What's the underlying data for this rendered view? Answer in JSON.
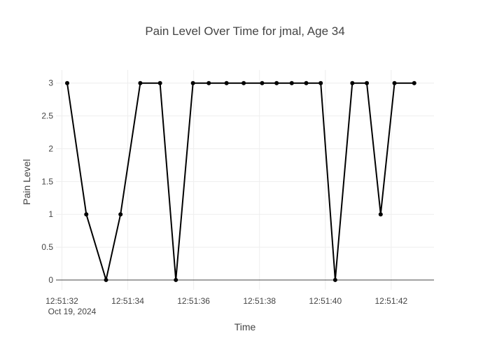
{
  "chart_data": {
    "type": "line",
    "title": "Pain Level Over Time for jmal, Age 34",
    "xlabel": "Time",
    "ylabel": "Pain Level",
    "date": "Oct 19, 2024",
    "x_tick_labels": [
      "12:51:32",
      "12:51:34",
      "12:51:36",
      "12:51:38",
      "12:51:40",
      "12:51:42"
    ],
    "y_tick_labels": [
      "0",
      "0.5",
      "1",
      "1.5",
      "2",
      "2.5",
      "3"
    ],
    "xlim": [
      "12:51:31.820",
      "12:51:43.300"
    ],
    "ylim": [
      -0.15,
      3.2
    ],
    "grid": true,
    "legend": false,
    "line_color": "#000000",
    "series": [
      {
        "x": [
          "12:51:32.160",
          "12:51:32.740",
          "12:51:33.340",
          "12:51:33.780",
          "12:51:34.380",
          "12:51:34.980",
          "12:51:35.460",
          "12:51:35.980",
          "12:51:36.460",
          "12:51:37.000",
          "12:51:37.520",
          "12:51:38.080",
          "12:51:38.520",
          "12:51:38.980",
          "12:51:39.420",
          "12:51:39.860",
          "12:51:40.300",
          "12:51:40.820",
          "12:51:41.260",
          "12:51:41.680",
          "12:51:42.100",
          "12:51:42.700"
        ],
        "y": [
          3,
          1,
          0,
          1,
          3,
          3,
          0,
          3,
          3,
          3,
          3,
          3,
          3,
          3,
          3,
          3,
          0,
          3,
          3,
          1,
          3,
          3
        ]
      }
    ]
  }
}
